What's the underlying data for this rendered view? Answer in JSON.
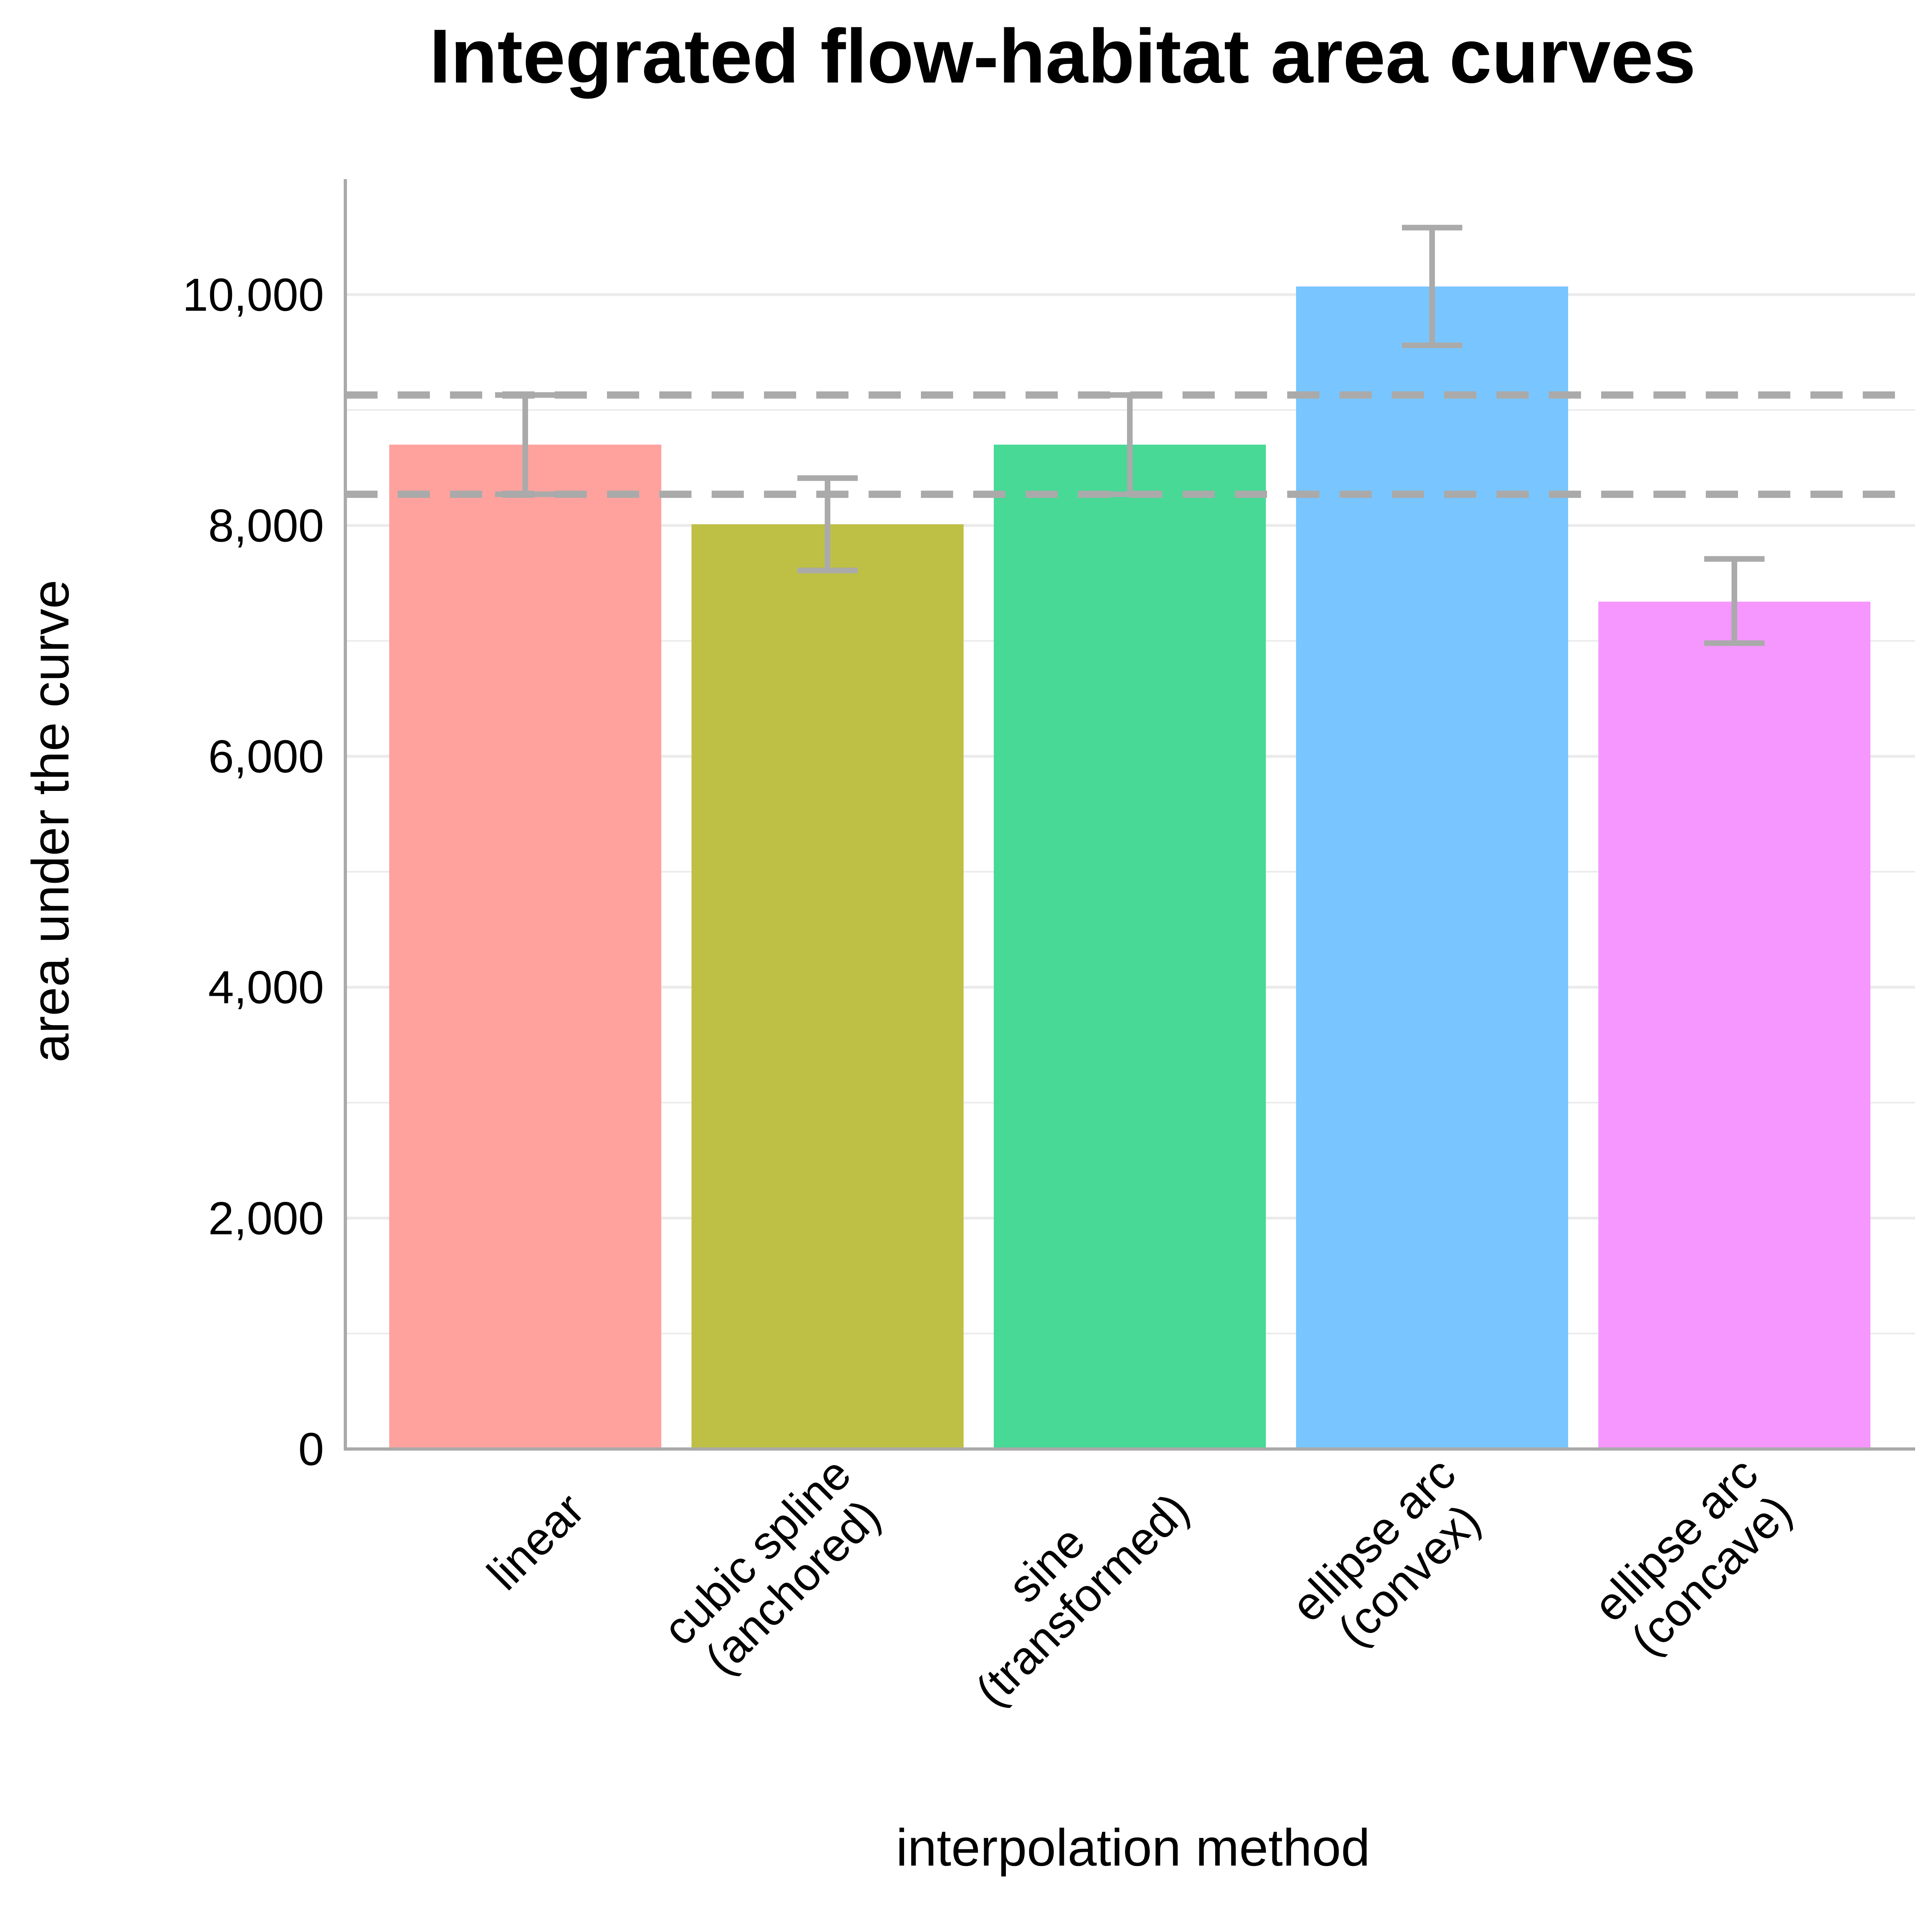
{
  "chart_data": {
    "type": "bar",
    "title": "Integrated flow-habitat area curves",
    "xlabel": "interpolation method",
    "ylabel": "area under the curve",
    "categories": [
      [
        "linear"
      ],
      [
        "cubic spline",
        "(anchored)"
      ],
      [
        "sine",
        "(transformed)"
      ],
      [
        "ellipse arc",
        "(convex)"
      ],
      [
        "ellipse arc",
        "(concave)"
      ]
    ],
    "values": [
      8700,
      8010,
      8700,
      10070,
      7340
    ],
    "error_low": [
      8270,
      7610,
      8270,
      9560,
      6980
    ],
    "error_high": [
      9130,
      8410,
      9130,
      10580,
      7710
    ],
    "colors": [
      "#FFA29E",
      "#BEC045",
      "#47D995",
      "#79C5FF",
      "#F597FF"
    ],
    "reference_lines": [
      8270,
      9130
    ],
    "ylim": [
      0,
      11000
    ],
    "yticks": [
      0,
      2000,
      4000,
      6000,
      8000,
      10000
    ],
    "ytick_labels": [
      "0",
      "2,000",
      "4,000",
      "6,000",
      "8,000",
      "10,000"
    ],
    "minor_grid": [
      1000,
      3000,
      5000,
      7000,
      9000
    ],
    "grid": true,
    "error_bar_color": "#AAAAAA",
    "reference_line_color": "#AAAAAA",
    "axis_color": "#AAAAAA",
    "grid_color": "#EBEBEB"
  }
}
